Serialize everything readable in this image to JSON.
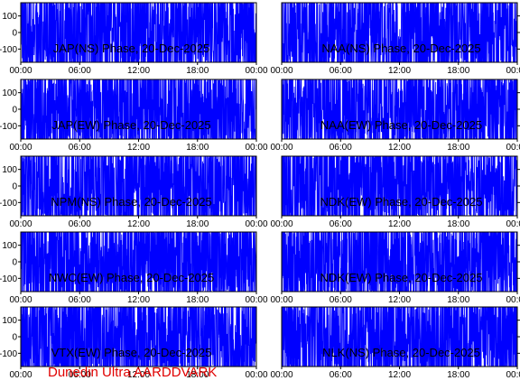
{
  "footer": "Dunedin Ultra AARDDVARK",
  "colors": {
    "trace": "#0000ff",
    "footer": "#e00000",
    "frame": "#000000"
  },
  "chart_data": [
    {
      "type": "line",
      "title": "JAP(NS) Phase, 20-Dec-2025",
      "ytick_side": "left",
      "xticks": [
        "00:00",
        "06:00",
        "12:00",
        "18:00",
        "00:00"
      ],
      "xlim": [
        0,
        24
      ],
      "yticks": [
        100,
        0,
        -100
      ],
      "ylim": [
        -180,
        180
      ],
      "grid": false
    },
    {
      "type": "line",
      "title": "NAA(NS) Phase, 20-Dec-2025",
      "ytick_side": "right",
      "xticks": [
        "00:00",
        "06:00",
        "12:00",
        "18:00",
        "00:00"
      ],
      "xlim": [
        0,
        24
      ],
      "yticks": [
        100,
        0,
        -100
      ],
      "ylim": [
        -180,
        180
      ],
      "grid": false
    },
    {
      "type": "line",
      "title": "JAP(EW) Phase, 20-Dec-2025",
      "ytick_side": "left",
      "xticks": [
        "00:00",
        "06:00",
        "12:00",
        "18:00",
        "00:00"
      ],
      "xlim": [
        0,
        24
      ],
      "yticks": [
        100,
        0,
        -100
      ],
      "ylim": [
        -180,
        180
      ],
      "grid": false
    },
    {
      "type": "line",
      "title": "NAA(EW) Phase, 20-Dec-2025",
      "ytick_side": "right",
      "xticks": [
        "00:00",
        "06:00",
        "12:00",
        "18:00",
        "00:00"
      ],
      "xlim": [
        0,
        24
      ],
      "yticks": [
        100,
        0,
        -100
      ],
      "ylim": [
        -180,
        180
      ],
      "grid": false
    },
    {
      "type": "line",
      "title": "NPM(NS) Phase, 20-Dec-2025",
      "ytick_side": "left",
      "xticks": [
        "00:00",
        "06:00",
        "12:00",
        "18:00",
        "00:00"
      ],
      "xlim": [
        0,
        24
      ],
      "yticks": [
        100,
        0,
        -100
      ],
      "ylim": [
        -180,
        180
      ],
      "grid": false
    },
    {
      "type": "line",
      "title": "NDK(EW) Phase, 20-Dec-2025",
      "ytick_side": "right",
      "xticks": [
        "00:00",
        "06:00",
        "12:00",
        "18:00",
        "00:00"
      ],
      "xlim": [
        0,
        24
      ],
      "yticks": [
        100,
        0,
        -100
      ],
      "ylim": [
        -180,
        180
      ],
      "grid": false
    },
    {
      "type": "line",
      "title": "NWC(EW) Phase, 20-Dec-2025",
      "ytick_side": "left",
      "xticks": [
        "00:00",
        "06:00",
        "12:00",
        "18:00",
        "00:00"
      ],
      "xlim": [
        0,
        24
      ],
      "yticks": [
        100,
        0,
        -100
      ],
      "ylim": [
        -180,
        180
      ],
      "grid": false
    },
    {
      "type": "line",
      "title": "NDK(EW) Phase, 20-Dec-2025",
      "ytick_side": "right",
      "xticks": [
        "00:00",
        "06:00",
        "12:00",
        "18:00",
        "00:00"
      ],
      "xlim": [
        0,
        24
      ],
      "yticks": [
        100,
        0,
        -100
      ],
      "ylim": [
        -180,
        180
      ],
      "grid": false
    },
    {
      "type": "line",
      "title": "VTX(EW) Phase, 20-Dec-2025",
      "ytick_side": "left",
      "xticks": [
        "00:00",
        "06:00",
        "12:00",
        "18:00",
        "00:00"
      ],
      "xlim": [
        0,
        24
      ],
      "yticks": [
        100,
        0,
        -100
      ],
      "ylim": [
        -180,
        180
      ],
      "grid": false
    },
    {
      "type": "line",
      "title": "NLK(NS) Phase, 20-Dec-2025",
      "ytick_side": "right",
      "xticks": [
        "00:00",
        "06:00",
        "12:00",
        "18:00",
        "00:00"
      ],
      "xlim": [
        0,
        24
      ],
      "yticks": [
        100,
        0,
        -100
      ],
      "ylim": [
        -180,
        180
      ],
      "grid": false
    }
  ]
}
